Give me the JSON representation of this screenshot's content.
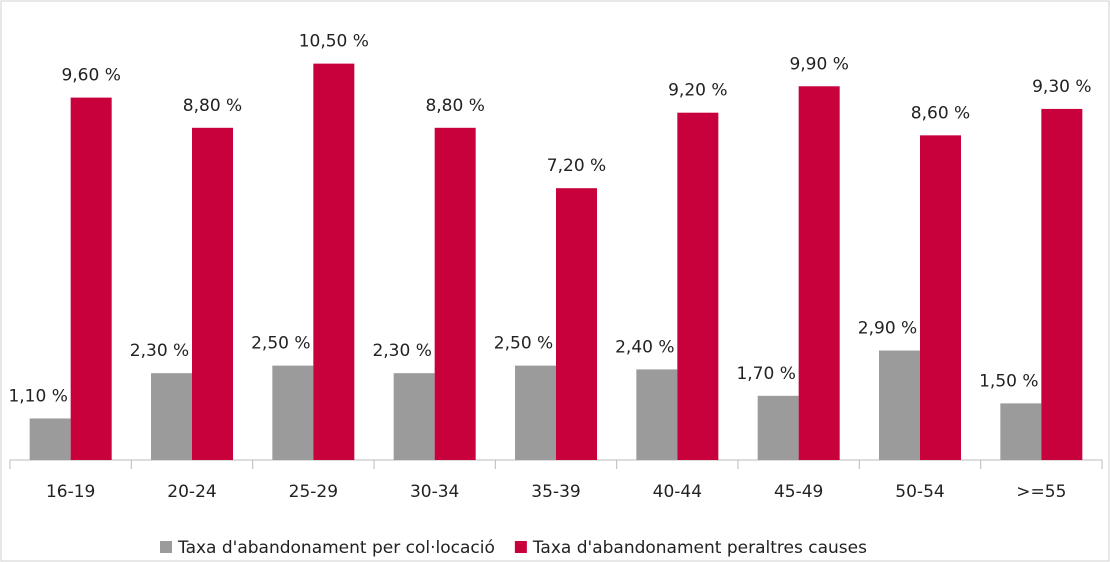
{
  "chart_data": {
    "type": "bar",
    "categories": [
      "16-19",
      "20-24",
      "25-29",
      "30-34",
      "35-39",
      "40-44",
      "45-49",
      "50-54",
      ">=55"
    ],
    "series": [
      {
        "name": "Taxa d'abandonament per col·locació",
        "color": "#9b9b9b",
        "values": [
          1.1,
          2.3,
          2.5,
          2.3,
          2.5,
          2.4,
          1.7,
          2.9,
          1.5
        ],
        "value_labels": [
          "1,10 %",
          "2,30 %",
          "2,50 %",
          "2,30 %",
          "2,50 %",
          "2,40 %",
          "1,70 %",
          "2,90 %",
          "1,50 %"
        ]
      },
      {
        "name": "Taxa d'abandonament peraltres causes",
        "color": "#c8003c",
        "values": [
          9.6,
          8.8,
          10.5,
          8.8,
          7.2,
          9.2,
          9.9,
          8.6,
          9.3
        ],
        "value_labels": [
          "9,60 %",
          "8,80 %",
          "10,50 %",
          "8,80 %",
          "7,20 %",
          "9,20 %",
          "9,90 %",
          "8,60 %",
          "9,30 %"
        ]
      }
    ],
    "ylim": [
      0,
      12
    ],
    "legend": "bottom"
  }
}
